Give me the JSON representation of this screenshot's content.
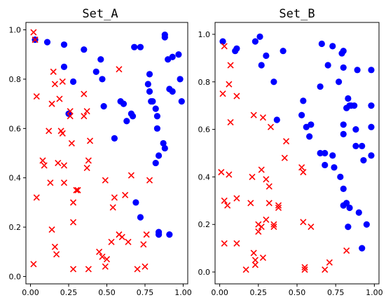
{
  "chart_data": [
    {
      "type": "scatter",
      "title": "Set_A",
      "xlabel": "",
      "ylabel": "",
      "xlim": [
        -0.03,
        1.03
      ],
      "ylim": [
        -0.03,
        1.03
      ],
      "grid": false,
      "xticks": [
        0.0,
        0.25,
        0.5,
        0.75,
        1.0
      ],
      "yticks": [
        0.0,
        0.2,
        0.4,
        0.6,
        0.8,
        1.0
      ],
      "xtick_labels": [
        "0.00",
        "0.25",
        "0.50",
        "0.75",
        "1.00"
      ],
      "ytick_labels": [
        "0.0",
        "0.2",
        "0.4",
        "0.6",
        "0.8",
        "1.0"
      ],
      "series": [
        {
          "marker": "circle",
          "color": "#0000ff",
          "points": [
            [
              0.03,
              0.96
            ],
            [
              0.11,
              0.95
            ],
            [
              0.22,
              0.94
            ],
            [
              0.35,
              0.92
            ],
            [
              0.22,
              0.85
            ],
            [
              0.28,
              0.79
            ],
            [
              0.43,
              0.83
            ],
            [
              0.46,
              0.88
            ],
            [
              0.47,
              0.8
            ],
            [
              0.48,
              0.69
            ],
            [
              0.25,
              0.66
            ],
            [
              0.59,
              0.71
            ],
            [
              0.61,
              0.7
            ],
            [
              0.63,
              0.63
            ],
            [
              0.66,
              0.66
            ],
            [
              0.67,
              0.65
            ],
            [
              0.68,
              0.93
            ],
            [
              0.72,
              0.93
            ],
            [
              0.78,
              0.82
            ],
            [
              0.77,
              0.78
            ],
            [
              0.78,
              0.75
            ],
            [
              0.79,
              0.71
            ],
            [
              0.8,
              0.71
            ],
            [
              0.82,
              0.68
            ],
            [
              0.83,
              0.65
            ],
            [
              0.83,
              0.6
            ],
            [
              0.82,
              0.46
            ],
            [
              0.84,
              0.49
            ],
            [
              0.87,
              0.54
            ],
            [
              0.88,
              0.52
            ],
            [
              0.88,
              0.97
            ],
            [
              0.88,
              0.98
            ],
            [
              0.9,
              0.88
            ],
            [
              0.93,
              0.89
            ],
            [
              0.97,
              0.9
            ],
            [
              0.91,
              0.76
            ],
            [
              0.93,
              0.75
            ],
            [
              0.98,
              0.8
            ],
            [
              0.99,
              0.71
            ],
            [
              0.55,
              0.56
            ],
            [
              0.69,
              0.3
            ],
            [
              0.72,
              0.24
            ],
            [
              0.84,
              0.18
            ],
            [
              0.84,
              0.17
            ],
            [
              0.91,
              0.17
            ]
          ]
        },
        {
          "marker": "x",
          "color": "#ff0000",
          "points": [
            [
              0.02,
              0.99
            ],
            [
              0.03,
              0.96
            ],
            [
              0.02,
              0.05
            ],
            [
              0.04,
              0.73
            ],
            [
              0.04,
              0.32
            ],
            [
              0.08,
              0.47
            ],
            [
              0.09,
              0.45
            ],
            [
              0.12,
              0.59
            ],
            [
              0.14,
              0.7
            ],
            [
              0.15,
              0.83
            ],
            [
              0.16,
              0.78
            ],
            [
              0.13,
              0.38
            ],
            [
              0.14,
              0.19
            ],
            [
              0.16,
              0.12
            ],
            [
              0.17,
              0.09
            ],
            [
              0.18,
              0.46
            ],
            [
              0.2,
              0.59
            ],
            [
              0.21,
              0.58
            ],
            [
              0.22,
              0.45
            ],
            [
              0.22,
              0.38
            ],
            [
              0.21,
              0.79
            ],
            [
              0.19,
              0.72
            ],
            [
              0.26,
              0.65
            ],
            [
              0.27,
              0.54
            ],
            [
              0.28,
              0.3
            ],
            [
              0.28,
              0.22
            ],
            [
              0.28,
              0.03
            ],
            [
              0.26,
              0.67
            ],
            [
              0.3,
              0.35
            ],
            [
              0.31,
              0.35
            ],
            [
              0.35,
              0.74
            ],
            [
              0.35,
              0.65
            ],
            [
              0.37,
              0.67
            ],
            [
              0.37,
              0.44
            ],
            [
              0.38,
              0.47
            ],
            [
              0.39,
              0.55
            ],
            [
              0.38,
              0.03
            ],
            [
              0.45,
              0.1
            ],
            [
              0.47,
              0.08
            ],
            [
              0.49,
              0.04
            ],
            [
              0.49,
              0.39
            ],
            [
              0.5,
              0.07
            ],
            [
              0.53,
              0.14
            ],
            [
              0.54,
              0.28
            ],
            [
              0.55,
              0.32
            ],
            [
              0.58,
              0.17
            ],
            [
              0.6,
              0.16
            ],
            [
              0.62,
              0.33
            ],
            [
              0.64,
              0.14
            ],
            [
              0.66,
              0.41
            ],
            [
              0.7,
              0.03
            ],
            [
              0.74,
              0.13
            ],
            [
              0.75,
              0.04
            ],
            [
              0.76,
              0.17
            ],
            [
              0.78,
              0.39
            ],
            [
              0.58,
              0.84
            ]
          ]
        }
      ]
    },
    {
      "type": "scatter",
      "title": "Set_B",
      "xlabel": "",
      "ylabel": "",
      "xlim": [
        -0.03,
        1.03
      ],
      "ylim": [
        -0.05,
        1.05
      ],
      "grid": false,
      "xticks": [
        0.0,
        0.25,
        0.5,
        0.75,
        1.0
      ],
      "yticks": [
        0.0,
        0.2,
        0.4,
        0.6,
        0.8,
        1.0
      ],
      "xtick_labels": [
        "0.00",
        "0.25",
        "0.50",
        "0.75",
        "1.00"
      ],
      "ytick_labels": [
        "0.0",
        "0.2",
        "0.4",
        "0.6",
        "0.8",
        "1.0"
      ],
      "series": [
        {
          "marker": "circle",
          "color": "#0000ff",
          "points": [
            [
              0.02,
              0.97
            ],
            [
              0.1,
              0.93
            ],
            [
              0.11,
              0.94
            ],
            [
              0.23,
              0.97
            ],
            [
              0.26,
              0.99
            ],
            [
              0.27,
              0.87
            ],
            [
              0.3,
              0.91
            ],
            [
              0.35,
              0.8
            ],
            [
              0.41,
              0.93
            ],
            [
              0.37,
              0.64
            ],
            [
              0.53,
              0.66
            ],
            [
              0.54,
              0.72
            ],
            [
              0.56,
              0.61
            ],
            [
              0.58,
              0.57
            ],
            [
              0.59,
              0.62
            ],
            [
              0.65,
              0.78
            ],
            [
              0.66,
              0.96
            ],
            [
              0.7,
              0.87
            ],
            [
              0.73,
              0.95
            ],
            [
              0.79,
              0.92
            ],
            [
              0.8,
              0.93
            ],
            [
              0.8,
              0.86
            ],
            [
              0.77,
              0.8
            ],
            [
              0.8,
              0.62
            ],
            [
              0.8,
              0.58
            ],
            [
              0.82,
              0.69
            ],
            [
              0.83,
              0.73
            ],
            [
              0.84,
              0.7
            ],
            [
              0.85,
              0.7
            ],
            [
              0.87,
              0.7
            ],
            [
              0.88,
              0.53
            ],
            [
              0.88,
              0.6
            ],
            [
              0.92,
              0.53
            ],
            [
              0.93,
              0.47
            ],
            [
              0.89,
              0.85
            ],
            [
              0.98,
              0.85
            ],
            [
              0.98,
              0.7
            ],
            [
              0.98,
              0.61
            ],
            [
              0.98,
              0.49
            ],
            [
              0.65,
              0.5
            ],
            [
              0.68,
              0.5
            ],
            [
              0.68,
              0.45
            ],
            [
              0.73,
              0.49
            ],
            [
              0.74,
              0.44
            ],
            [
              0.78,
              0.4
            ],
            [
              0.8,
              0.35
            ],
            [
              0.82,
              0.29
            ],
            [
              0.84,
              0.27
            ],
            [
              0.8,
              0.28
            ],
            [
              0.83,
              0.19
            ],
            [
              0.9,
              0.25
            ],
            [
              0.92,
              0.1
            ],
            [
              0.95,
              0.2
            ]
          ]
        },
        {
          "marker": "x",
          "color": "#ff0000",
          "points": [
            [
              0.01,
              0.42
            ],
            [
              0.03,
              0.95
            ],
            [
              0.06,
              0.79
            ],
            [
              0.07,
              0.87
            ],
            [
              0.02,
              0.75
            ],
            [
              0.11,
              0.74
            ],
            [
              0.07,
              0.63
            ],
            [
              0.06,
              0.41
            ],
            [
              0.03,
              0.3
            ],
            [
              0.05,
              0.28
            ],
            [
              0.11,
              0.31
            ],
            [
              0.03,
              0.12
            ],
            [
              0.11,
              0.12
            ],
            [
              0.17,
              0.01
            ],
            [
              0.21,
              0.4
            ],
            [
              0.2,
              0.29
            ],
            [
              0.22,
              0.66
            ],
            [
              0.22,
              0.08
            ],
            [
              0.23,
              0.05
            ],
            [
              0.23,
              0.03
            ],
            [
              0.25,
              0.17
            ],
            [
              0.25,
              0.2
            ],
            [
              0.27,
              0.43
            ],
            [
              0.27,
              0.19
            ],
            [
              0.28,
              0.65
            ],
            [
              0.28,
              0.06
            ],
            [
              0.3,
              0.22
            ],
            [
              0.3,
              0.39
            ],
            [
              0.32,
              0.29
            ],
            [
              0.32,
              0.36
            ],
            [
              0.33,
              0.61
            ],
            [
              0.35,
              0.2
            ],
            [
              0.38,
              0.28
            ],
            [
              0.43,
              0.55
            ],
            [
              0.42,
              0.48
            ],
            [
              0.53,
              0.44
            ],
            [
              0.54,
              0.42
            ],
            [
              0.54,
              0.21
            ],
            [
              0.55,
              0.02
            ],
            [
              0.55,
              0.01
            ],
            [
              0.59,
              0.19
            ],
            [
              0.68,
              0.01
            ],
            [
              0.71,
              0.04
            ],
            [
              0.82,
              0.09
            ],
            [
              0.35,
              0.19
            ],
            [
              0.38,
              0.27
            ]
          ]
        }
      ]
    }
  ]
}
